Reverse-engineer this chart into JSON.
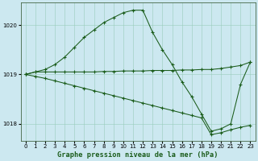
{
  "line1_x": [
    0,
    1,
    2,
    3,
    4,
    5,
    6,
    7,
    8,
    9,
    10,
    11,
    12,
    13,
    14,
    15,
    16,
    17,
    18,
    19,
    20,
    21,
    22,
    23
  ],
  "line1_y": [
    1019.0,
    1019.05,
    1019.1,
    1019.2,
    1019.35,
    1019.55,
    1019.75,
    1019.9,
    1020.05,
    1020.15,
    1020.25,
    1020.3,
    1020.3,
    1019.85,
    1019.5,
    1019.2,
    1018.85,
    1018.55,
    1018.2,
    1017.85,
    1017.9,
    1018.0,
    1018.8,
    1019.25
  ],
  "line2_x": [
    0,
    1,
    2,
    3,
    4,
    5,
    6,
    7,
    8,
    9,
    10,
    11,
    12,
    13,
    14,
    15,
    16,
    17,
    18,
    19,
    20,
    21,
    22,
    23
  ],
  "line2_y": [
    1019.0,
    1019.05,
    1019.05,
    1019.05,
    1019.05,
    1019.05,
    1019.05,
    1019.05,
    1019.06,
    1019.06,
    1019.07,
    1019.07,
    1019.07,
    1019.08,
    1019.08,
    1019.08,
    1019.09,
    1019.09,
    1019.1,
    1019.1,
    1019.12,
    1019.15,
    1019.18,
    1019.25
  ],
  "line3_x": [
    0,
    1,
    2,
    3,
    4,
    5,
    6,
    7,
    8,
    9,
    10,
    11,
    12,
    13,
    14,
    15,
    16,
    17,
    18,
    19,
    20,
    21,
    22,
    23
  ],
  "line3_y": [
    1019.0,
    1018.96,
    1018.92,
    1018.87,
    1018.82,
    1018.77,
    1018.72,
    1018.67,
    1018.62,
    1018.57,
    1018.52,
    1018.47,
    1018.42,
    1018.37,
    1018.32,
    1018.27,
    1018.22,
    1018.17,
    1018.12,
    1017.78,
    1017.82,
    1017.88,
    1017.93,
    1017.97
  ],
  "line_color": "#1a5c1a",
  "marker": "+",
  "bg_color": "#cce8f0",
  "grid_color": "#99ccbb",
  "title": "Graphe pression niveau de la mer (hPa)",
  "xlabel_ticks": [
    0,
    1,
    2,
    3,
    4,
    5,
    6,
    7,
    8,
    9,
    10,
    11,
    12,
    13,
    14,
    15,
    16,
    17,
    18,
    19,
    20,
    21,
    22,
    23
  ],
  "ylim": [
    1017.65,
    1020.45
  ],
  "yticks": [
    1018,
    1019,
    1020
  ],
  "title_fontsize": 6.2,
  "tick_fontsize": 5.0
}
